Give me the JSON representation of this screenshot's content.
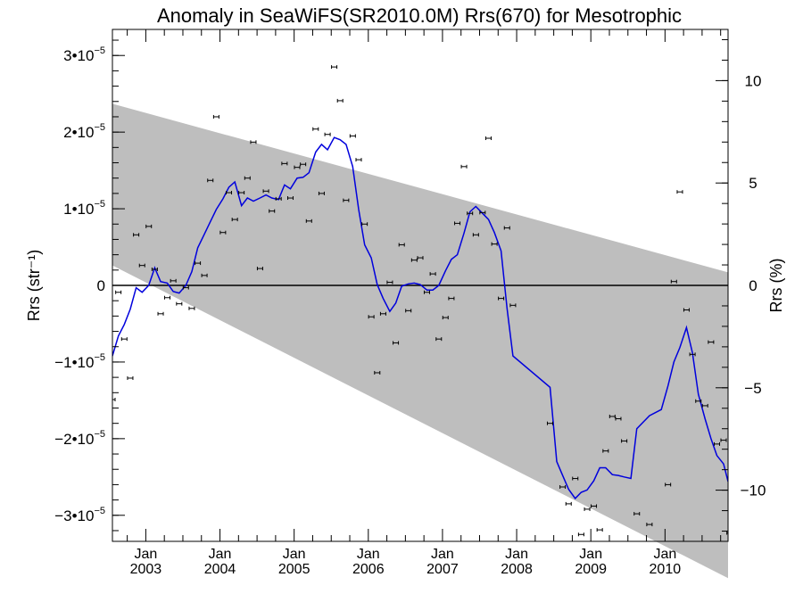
{
  "chart_data": {
    "type": "line",
    "title": "Anomaly in SeaWiFS(SR2010.0M) Rrs(670) for Mesotrophic",
    "ylabel_left": "Rrs (str⁻¹)",
    "ylabel_right": "Rrs (%)",
    "x_axis": {
      "range": [
        2002.55,
        2010.85
      ],
      "ticks": [
        {
          "value": 2003.0,
          "month": "Jan",
          "year": "2003"
        },
        {
          "value": 2004.0,
          "month": "Jan",
          "year": "2004"
        },
        {
          "value": 2005.0,
          "month": "Jan",
          "year": "2005"
        },
        {
          "value": 2006.0,
          "month": "Jan",
          "year": "2006"
        },
        {
          "value": 2007.0,
          "month": "Jan",
          "year": "2007"
        },
        {
          "value": 2008.0,
          "month": "Jan",
          "year": "2008"
        },
        {
          "value": 2009.0,
          "month": "Jan",
          "year": "2009"
        },
        {
          "value": 2010.0,
          "month": "Jan",
          "year": "2010"
        }
      ]
    },
    "y_left_axis": {
      "range": [
        -3.34e-05,
        3.34e-05
      ],
      "ticks": [
        {
          "value": 3e-05,
          "label": "3•10",
          "exp": "−5"
        },
        {
          "value": 2e-05,
          "label": "2•10",
          "exp": "−5"
        },
        {
          "value": 1e-05,
          "label": "1•10",
          "exp": "−5"
        },
        {
          "value": 0,
          "label": "0",
          "exp": ""
        },
        {
          "value": -1e-05,
          "label": "−1•10",
          "exp": "−5"
        },
        {
          "value": -2e-05,
          "label": "−2•10",
          "exp": "−5"
        },
        {
          "value": -3e-05,
          "label": "−3•10",
          "exp": "−5"
        }
      ]
    },
    "y_right_axis": {
      "range": [
        -12.5,
        12.5
      ],
      "ticks": [
        {
          "value": 10,
          "label": "10"
        },
        {
          "value": 5,
          "label": "5"
        },
        {
          "value": 0,
          "label": "0"
        },
        {
          "value": -5,
          "label": "−5"
        },
        {
          "value": -10,
          "label": "−10"
        }
      ]
    },
    "zero_line": 0,
    "band": {
      "color": "#bebebe",
      "upper": [
        [
          2002.55,
          2.37e-05
        ],
        [
          2010.85,
          1.7e-06
        ]
      ],
      "lower": [
        [
          2002.55,
          2.6e-06
        ],
        [
          2010.85,
          -3.82e-05
        ]
      ]
    },
    "points": {
      "name": "",
      "color": "#000000",
      "data": [
        [
          2002.55,
          -1.49e-05
        ],
        [
          2002.63,
          -9e-07
        ],
        [
          2002.71,
          -7e-06
        ],
        [
          2002.79,
          -1.21e-05
        ],
        [
          2002.87,
          6.6e-06
        ],
        [
          2002.95,
          2.6e-06
        ],
        [
          2003.04,
          7.7e-06
        ],
        [
          2003.12,
          2.1e-06
        ],
        [
          2003.2,
          -3.7e-06
        ],
        [
          2003.29,
          -1.6e-06
        ],
        [
          2003.37,
          6e-07
        ],
        [
          2003.45,
          -2.4e-06
        ],
        [
          2003.54,
          -3e-07
        ],
        [
          2003.62,
          -3e-06
        ],
        [
          2003.7,
          2.9e-06
        ],
        [
          2003.79,
          1.3e-06
        ],
        [
          2003.87,
          1.37e-05
        ],
        [
          2003.95,
          2.2e-05
        ],
        [
          2004.04,
          6.9e-06
        ],
        [
          2004.12,
          1.21e-05
        ],
        [
          2004.2,
          8.6e-06
        ],
        [
          2004.29,
          1.21e-05
        ],
        [
          2004.37,
          1.4e-05
        ],
        [
          2004.45,
          1.87e-05
        ],
        [
          2004.54,
          2.2e-06
        ],
        [
          2004.62,
          1.23e-05
        ],
        [
          2004.7,
          9.7e-06
        ],
        [
          2004.79,
          1.13e-05
        ],
        [
          2004.87,
          1.59e-05
        ],
        [
          2004.95,
          1.14e-05
        ],
        [
          2005.04,
          1.54e-05
        ],
        [
          2005.12,
          1.58e-05
        ],
        [
          2005.2,
          8.4e-06
        ],
        [
          2005.29,
          2.04e-05
        ],
        [
          2005.37,
          1.2e-05
        ],
        [
          2005.45,
          1.97e-05
        ],
        [
          2005.54,
          2.85e-05
        ],
        [
          2005.62,
          2.41e-05
        ],
        [
          2005.7,
          1.11e-05
        ],
        [
          2005.79,
          1.95e-05
        ],
        [
          2005.87,
          1.64e-05
        ],
        [
          2005.95,
          8e-06
        ],
        [
          2006.04,
          -4.1e-06
        ],
        [
          2006.12,
          -1.14e-05
        ],
        [
          2006.2,
          -3.7e-06
        ],
        [
          2006.29,
          4e-07
        ],
        [
          2006.37,
          -7.5e-06
        ],
        [
          2006.45,
          5.3e-06
        ],
        [
          2006.54,
          -3.3e-06
        ],
        [
          2006.62,
          3.3e-06
        ],
        [
          2006.7,
          3.6e-06
        ],
        [
          2006.79,
          -9e-07
        ],
        [
          2006.87,
          1.5e-06
        ],
        [
          2006.95,
          -7e-06
        ],
        [
          2007.04,
          -4.2e-06
        ],
        [
          2007.12,
          -1.7e-06
        ],
        [
          2007.2,
          8.1e-06
        ],
        [
          2007.29,
          1.55e-05
        ],
        [
          2007.37,
          9.4e-06
        ],
        [
          2007.45,
          6.6e-06
        ],
        [
          2007.54,
          9.5e-06
        ],
        [
          2007.62,
          1.92e-05
        ],
        [
          2007.7,
          5.4e-06
        ],
        [
          2007.79,
          -1.7e-06
        ],
        [
          2007.87,
          7.5e-06
        ],
        [
          2007.95,
          -2.6e-06
        ],
        [
          2008.45,
          -1.8e-05
        ],
        [
          2008.62,
          -2.63e-05
        ],
        [
          2008.7,
          -2.85e-05
        ],
        [
          2008.79,
          -2.52e-05
        ],
        [
          2008.87,
          -3.25e-05
        ],
        [
          2008.95,
          -2.92e-05
        ],
        [
          2009.04,
          -2.88e-05
        ],
        [
          2009.12,
          -3.19e-05
        ],
        [
          2009.2,
          -2.16e-05
        ],
        [
          2009.29,
          -1.71e-05
        ],
        [
          2009.37,
          -1.74e-05
        ],
        [
          2009.45,
          -2.03e-05
        ],
        [
          2009.62,
          -2.98e-05
        ],
        [
          2009.79,
          -3.12e-05
        ],
        [
          2010.04,
          -2.6e-05
        ],
        [
          2010.12,
          5e-07
        ],
        [
          2010.2,
          1.22e-05
        ],
        [
          2010.29,
          -3.2e-06
        ],
        [
          2010.37,
          -9e-06
        ],
        [
          2010.45,
          -1.51e-05
        ],
        [
          2010.54,
          -1.57e-05
        ],
        [
          2010.62,
          -7.4e-06
        ],
        [
          2010.7,
          -2.07e-05
        ],
        [
          2010.79,
          -2.02e-05
        ],
        [
          2010.87,
          -3.23e-05
        ]
      ]
    },
    "smoothed": {
      "name": "",
      "color": "#0000dd",
      "data": [
        [
          2002.55,
          -9.2e-06
        ],
        [
          2002.63,
          -6.6e-06
        ],
        [
          2002.71,
          -5.1e-06
        ],
        [
          2002.79,
          -3.1e-06
        ],
        [
          2002.87,
          -3e-07
        ],
        [
          2002.95,
          -9e-07
        ],
        [
          2003.04,
          0.0
        ],
        [
          2003.12,
          2.3e-06
        ],
        [
          2003.2,
          5e-07
        ],
        [
          2003.29,
          3e-07
        ],
        [
          2003.37,
          -8e-07
        ],
        [
          2003.45,
          -1e-06
        ],
        [
          2003.54,
          0.0
        ],
        [
          2003.62,
          1.8e-06
        ],
        [
          2003.7,
          4.9e-06
        ],
        [
          2003.79,
          6.7e-06
        ],
        [
          2003.87,
          8.3e-06
        ],
        [
          2003.95,
          9.9e-06
        ],
        [
          2004.04,
          1.13e-05
        ],
        [
          2004.12,
          1.28e-05
        ],
        [
          2004.2,
          1.35e-05
        ],
        [
          2004.29,
          1.04e-05
        ],
        [
          2004.37,
          1.14e-05
        ],
        [
          2004.45,
          1.1e-05
        ],
        [
          2004.54,
          1.14e-05
        ],
        [
          2004.62,
          1.18e-05
        ],
        [
          2004.7,
          1.14e-05
        ],
        [
          2004.79,
          1.12e-05
        ],
        [
          2004.87,
          1.31e-05
        ],
        [
          2004.95,
          1.26e-05
        ],
        [
          2005.04,
          1.4e-05
        ],
        [
          2005.12,
          1.41e-05
        ],
        [
          2005.2,
          1.47e-05
        ],
        [
          2005.29,
          1.74e-05
        ],
        [
          2005.37,
          1.84e-05
        ],
        [
          2005.45,
          1.77e-05
        ],
        [
          2005.54,
          1.93e-05
        ],
        [
          2005.62,
          1.9e-05
        ],
        [
          2005.7,
          1.84e-05
        ],
        [
          2005.79,
          1.55e-05
        ],
        [
          2005.87,
          9.9e-06
        ],
        [
          2005.95,
          5.3e-06
        ],
        [
          2006.04,
          3.6e-06
        ],
        [
          2006.12,
          1e-07
        ],
        [
          2006.2,
          -1.7e-06
        ],
        [
          2006.29,
          -3.4e-06
        ],
        [
          2006.37,
          -2.3e-06
        ],
        [
          2006.45,
          -1e-07
        ],
        [
          2006.54,
          2e-07
        ],
        [
          2006.62,
          3e-07
        ],
        [
          2006.7,
          1e-07
        ],
        [
          2006.79,
          -6e-07
        ],
        [
          2006.87,
          -6e-07
        ],
        [
          2006.95,
          0.0
        ],
        [
          2007.04,
          1.9e-06
        ],
        [
          2007.12,
          3.4e-06
        ],
        [
          2007.2,
          4e-06
        ],
        [
          2007.29,
          6.8e-06
        ],
        [
          2007.37,
          9.6e-06
        ],
        [
          2007.45,
          1.03e-05
        ],
        [
          2007.54,
          9.4e-06
        ],
        [
          2007.62,
          8.6e-06
        ],
        [
          2007.7,
          6.9e-06
        ],
        [
          2007.79,
          4.5e-06
        ],
        [
          2007.87,
          -3e-06
        ],
        [
          2007.95,
          -9.2e-06
        ],
        [
          2008.45,
          -1.33e-05
        ],
        [
          2008.54,
          -2.3e-05
        ],
        [
          2008.62,
          -2.48e-05
        ],
        [
          2008.7,
          -2.66e-05
        ],
        [
          2008.79,
          -2.78e-05
        ],
        [
          2008.87,
          -2.7e-05
        ],
        [
          2008.95,
          -2.67e-05
        ],
        [
          2009.04,
          -2.55e-05
        ],
        [
          2009.12,
          -2.38e-05
        ],
        [
          2009.2,
          -2.38e-05
        ],
        [
          2009.29,
          -2.47e-05
        ],
        [
          2009.37,
          -2.48e-05
        ],
        [
          2009.45,
          -2.5e-05
        ],
        [
          2009.54,
          -2.52e-05
        ],
        [
          2009.62,
          -1.87e-05
        ],
        [
          2009.79,
          -1.7e-05
        ],
        [
          2009.95,
          -1.62e-05
        ],
        [
          2010.04,
          -1.31e-05
        ],
        [
          2010.12,
          -1e-05
        ],
        [
          2010.2,
          -8.1e-06
        ],
        [
          2010.29,
          -5.5e-06
        ],
        [
          2010.37,
          -8.8e-06
        ],
        [
          2010.45,
          -1.42e-05
        ],
        [
          2010.54,
          -1.74e-05
        ],
        [
          2010.62,
          -2e-05
        ],
        [
          2010.7,
          -2.22e-05
        ],
        [
          2010.79,
          -2.33e-05
        ],
        [
          2010.85,
          -2.56e-05
        ]
      ]
    }
  }
}
